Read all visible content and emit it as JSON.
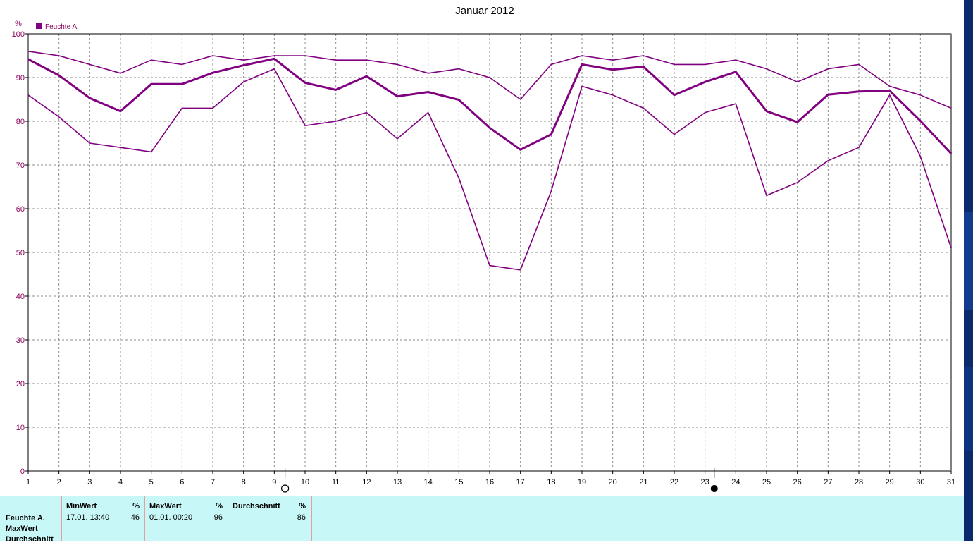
{
  "chart_data": {
    "type": "line",
    "title": "Januar 2012",
    "yunit_label": "%",
    "legend": {
      "label": "Feuchte A.",
      "color": "#800080",
      "placement": "top-left"
    },
    "x": [
      1,
      2,
      3,
      4,
      5,
      6,
      7,
      8,
      9,
      10,
      11,
      12,
      13,
      14,
      15,
      16,
      17,
      18,
      19,
      20,
      21,
      22,
      23,
      24,
      25,
      26,
      27,
      28,
      29,
      30,
      31
    ],
    "ylim": [
      0,
      100
    ],
    "yticks": [
      0,
      10,
      20,
      30,
      40,
      50,
      60,
      70,
      80,
      90,
      100
    ],
    "grid": true,
    "moon_markers": [
      {
        "x": 9.35,
        "phase": "full-moon-icon"
      },
      {
        "x": 23.3,
        "phase": "new-moon-icon"
      }
    ],
    "series": [
      {
        "role": "max",
        "stroke_width": 1.6,
        "values": [
          96,
          95,
          93,
          91,
          94,
          93,
          95,
          94,
          95,
          95,
          94,
          94,
          93,
          91,
          92,
          90,
          85,
          93,
          95,
          94,
          95,
          93,
          93,
          94,
          92,
          89,
          92,
          93,
          88,
          86,
          83
        ]
      },
      {
        "role": "avg",
        "stroke_width": 3,
        "values": [
          94.2,
          90.5,
          85.3,
          82.3,
          88.5,
          88.5,
          91.1,
          92.8,
          94.3,
          88.8,
          87.2,
          90.3,
          85.7,
          86.7,
          84.9,
          78.5,
          73.5,
          77,
          93,
          91.8,
          92.5,
          86,
          89,
          91.3,
          82.3,
          79.8,
          86.1,
          86.8,
          87,
          80.1,
          72.6
        ]
      },
      {
        "role": "min",
        "stroke_width": 1.6,
        "values": [
          86,
          81,
          75,
          74,
          73,
          83,
          83,
          89,
          92,
          79,
          80,
          82,
          76,
          82,
          67,
          47,
          46,
          64,
          88,
          86,
          83,
          77,
          82,
          84,
          63,
          66,
          71,
          74,
          86,
          72,
          51
        ]
      }
    ]
  },
  "stats": {
    "row_labels": [
      "Feuchte A.",
      "MaxWert",
      "Durchschnitt"
    ],
    "min": {
      "header": "MinWert",
      "unit": "%",
      "timestamp": "17.01.  13:40",
      "value": "46"
    },
    "max": {
      "header": "MaxWert",
      "unit": "%",
      "timestamp": "01.01.  00:20",
      "value": "96"
    },
    "avg": {
      "header": "Durchschnitt",
      "unit": "%",
      "value": "86"
    }
  }
}
